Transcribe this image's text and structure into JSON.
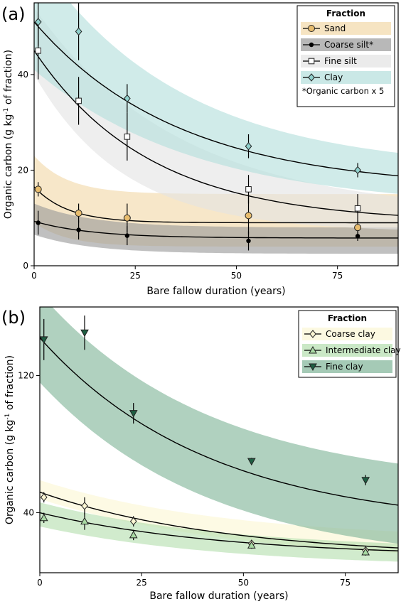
{
  "chart_data": [
    {
      "panel_label": "(a)",
      "type": "scatter",
      "xlabel": "Bare fallow duration (years)",
      "ylabel_pre": "Organic carbon (g kg",
      "ylabel_sup": "-1",
      "ylabel_post": " of fraction)",
      "xlim": [
        0,
        90
      ],
      "ylim": [
        0,
        55
      ],
      "xticks": [
        0,
        25,
        50,
        75
      ],
      "yticks": [
        0,
        20,
        40
      ],
      "legend_title": "Fraction",
      "legend_note": "*Organic carbon x 5",
      "legend_position": "top-right",
      "grid": false,
      "series": [
        {
          "name": "Sand",
          "marker": "circle",
          "fill": "#e8bd6e",
          "band_color": "#f2d9a8",
          "x": [
            1,
            11,
            23,
            53,
            80
          ],
          "y": [
            16,
            11,
            10,
            10.5,
            8
          ],
          "err": [
            1.5,
            2,
            3,
            4,
            1.5
          ],
          "fit": {
            "c": 9,
            "a": 7.5,
            "k": 0.12
          },
          "band": {
            "lo_c": 4,
            "lo_a": 5,
            "lo_k": 0.12,
            "hi_c": 15,
            "hi_a": 8,
            "hi_k": 0.12
          }
        },
        {
          "name": "Coarse silt*",
          "marker": "dot",
          "fill": "#000000",
          "band_color": "#9a9a9a",
          "x": [
            1,
            11,
            23,
            53,
            80
          ],
          "y": [
            9,
            7.5,
            6.3,
            5.2,
            6.2
          ],
          "err": [
            2.5,
            2,
            2,
            2,
            1
          ],
          "fit": {
            "c": 5.8,
            "a": 3.5,
            "k": 0.07
          },
          "band": {
            "lo_c": 2.5,
            "lo_a": 4,
            "lo_k": 0.07,
            "hi_c": 8,
            "hi_a": 5,
            "hi_k": 0.07
          }
        },
        {
          "name": "Fine silt",
          "marker": "square",
          "fill": "#ffffff",
          "band_color": "#e3e3e3",
          "x": [
            1,
            11,
            23,
            53,
            80
          ],
          "y": [
            45,
            34.5,
            27,
            16,
            12
          ],
          "err": [
            6,
            5,
            5,
            3,
            3
          ],
          "fit": {
            "c": 9,
            "a": 36,
            "k": 0.035
          },
          "band": {
            "lo_c": 7,
            "lo_a": 33,
            "lo_k": 0.045,
            "hi_c": 11,
            "hi_a": 43,
            "hi_k": 0.028
          }
        },
        {
          "name": "Clay",
          "marker": "diamond",
          "fill": "#8fd0cc",
          "band_color": "#b3dedb",
          "x": [
            1,
            11,
            23,
            53,
            80
          ],
          "y": [
            51,
            49,
            35,
            25,
            20
          ],
          "err": [
            5,
            6,
            3,
            2.5,
            1.5
          ],
          "fit": {
            "c": 16,
            "a": 35,
            "k": 0.028
          },
          "band": {
            "lo_c": 12,
            "lo_a": 29,
            "lo_k": 0.025,
            "hi_c": 20,
            "hi_a": 45,
            "hi_k": 0.028
          }
        }
      ]
    },
    {
      "panel_label": "(b)",
      "type": "scatter",
      "xlabel": "Bare fallow duration (years)",
      "ylabel_pre": "Organic carbon (g kg",
      "ylabel_sup": "-1",
      "ylabel_post": " of fraction)",
      "xlim": [
        0,
        88
      ],
      "ylim": [
        5,
        160
      ],
      "xticks": [
        0,
        25,
        50,
        75
      ],
      "yticks": [
        40,
        120
      ],
      "legend_title": "Fraction",
      "legend_position": "top-right",
      "grid": false,
      "series": [
        {
          "name": "Coarse clay",
          "marker": "diamond",
          "fill": "#fbf6d3",
          "band_color": "#fbf7d4",
          "x": [
            1,
            11,
            23,
            52,
            80
          ],
          "y": [
            49,
            44,
            35,
            22,
            18
          ],
          "err": [
            3,
            5,
            3,
            2,
            2
          ],
          "fit": {
            "c": 14,
            "a": 38,
            "k": 0.022
          },
          "band": {
            "lo_c": 10,
            "lo_a": 38,
            "lo_k": 0.02,
            "hi_c": 24,
            "hi_a": 35,
            "hi_k": 0.022
          }
        },
        {
          "name": "Intermediate clay",
          "marker": "triangle-up",
          "fill": "#a8d9a3",
          "band_color": "#b4deae",
          "x": [
            1,
            11,
            23,
            52,
            80
          ],
          "y": [
            37,
            35,
            27,
            21,
            17
          ],
          "err": [
            3,
            5,
            3,
            2,
            2
          ],
          "fit": {
            "c": 14,
            "a": 26,
            "k": 0.022
          },
          "band": {
            "lo_c": 8,
            "lo_a": 24,
            "lo_k": 0.022,
            "hi_c": 18,
            "hi_a": 28,
            "hi_k": 0.022
          }
        },
        {
          "name": "Fine clay",
          "marker": "triangle-down",
          "fill": "#1e5e42",
          "band_color": "#7fb497",
          "x": [
            1,
            11,
            23,
            52,
            80
          ],
          "y": [
            141,
            145,
            98,
            70,
            59
          ],
          "err": [
            12,
            10,
            6,
            2,
            3
          ],
          "fit": {
            "c": 31,
            "a": 111,
            "k": 0.024
          },
          "band": {
            "lo_c": 9,
            "lo_a": 107,
            "lo_k": 0.024,
            "hi_c": 55,
            "hi_a": 113,
            "hi_k": 0.024
          }
        }
      ]
    }
  ]
}
